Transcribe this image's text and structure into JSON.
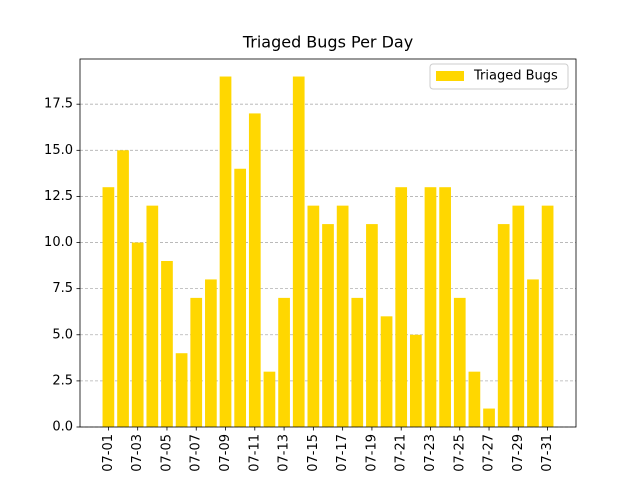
{
  "chart_data": {
    "type": "bar",
    "title": "Triaged Bugs Per Day",
    "categories": [
      "07-01",
      null,
      "07-03",
      null,
      "07-05",
      null,
      "07-07",
      null,
      "07-09",
      null,
      "07-11",
      null,
      "07-13",
      null,
      "07-15",
      null,
      "07-17",
      null,
      "07-19",
      null,
      "07-21",
      null,
      "07-23",
      null,
      "07-25",
      null,
      "07-27",
      null,
      "07-29",
      null,
      "07-31"
    ],
    "series": [
      {
        "name": "Triaged Bugs",
        "color": "#ffd700",
        "values": [
          13,
          15,
          10,
          12,
          9,
          4,
          7,
          8,
          19,
          14,
          17,
          3,
          7,
          19,
          12,
          11,
          12,
          7,
          11,
          6,
          13,
          5,
          13,
          13,
          7,
          3,
          1,
          11,
          12,
          8,
          12
        ]
      }
    ],
    "ylim": [
      0,
      19.95
    ],
    "yticks": [
      {
        "value": 0,
        "label": "0.0"
      },
      2.5,
      {
        "value": 5,
        "label": "5.0"
      },
      7.5,
      {
        "value": 10,
        "label": "10.0"
      },
      12.5,
      {
        "value": 15,
        "label": "15.0"
      },
      17.5
    ],
    "grid": true,
    "legend": "upper right"
  }
}
